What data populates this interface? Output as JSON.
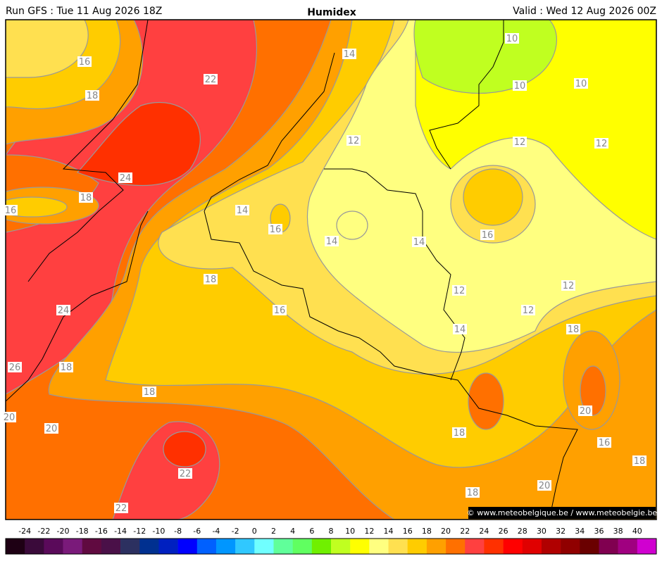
{
  "header": {
    "left": "Run GFS : Tue 11 Aug 2026 18Z",
    "title": "Humidex",
    "right": "Valid : Wed 12 Aug 2026 00Z"
  },
  "map": {
    "contour_labels": [
      "16",
      "18",
      "22",
      "24",
      "18",
      "16",
      "14",
      "12",
      "10",
      "10",
      "10",
      "12",
      "12",
      "14",
      "16",
      "14",
      "14",
      "16",
      "18",
      "16",
      "12",
      "12",
      "12",
      "14",
      "18",
      "24",
      "26",
      "18",
      "18",
      "20",
      "20",
      "20",
      "18",
      "16",
      "18",
      "22",
      "18",
      "20",
      "22"
    ],
    "credit": "© www.meteobelgique.be / www.meteobelgie.be"
  },
  "colorbar": {
    "ticks": [
      -24,
      -22,
      -20,
      -18,
      -16,
      -14,
      -12,
      -10,
      -8,
      -6,
      -4,
      -2,
      0,
      2,
      4,
      6,
      8,
      10,
      12,
      14,
      16,
      18,
      20,
      22,
      24,
      26,
      28,
      30,
      32,
      34,
      36,
      38,
      40
    ],
    "colors": [
      "#1e0014",
      "#3a0a3a",
      "#5a0a5a",
      "#7a1a7a",
      "#600a40",
      "#4a1048",
      "#2c3060",
      "#003090",
      "#0020c0",
      "#0000ff",
      "#0060ff",
      "#0096ff",
      "#30c8ff",
      "#70ffff",
      "#60ff9a",
      "#60ff60",
      "#70f000",
      "#c0ff20",
      "#ffff00",
      "#ffff80",
      "#ffe050",
      "#ffcc00",
      "#ffa000",
      "#ff7000",
      "#ff4040",
      "#ff3000",
      "#ff0000",
      "#e00000",
      "#b00000",
      "#900000",
      "#6a0000",
      "#800050",
      "#a00080",
      "#d000d0"
    ]
  }
}
